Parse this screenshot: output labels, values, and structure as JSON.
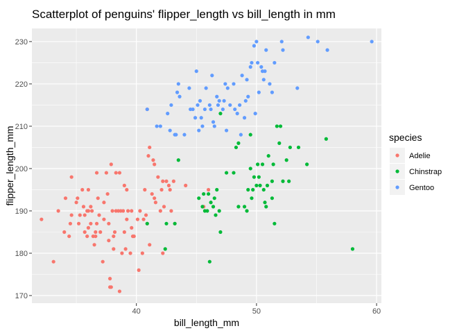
{
  "chart_data": {
    "type": "scatter",
    "title": "Scatterplot of penguins' flipper_length vs bill_length in mm",
    "xlabel": "bill_length_mm",
    "ylabel": "flipper_length_mm",
    "xlim": [
      31.3,
      60.4
    ],
    "ylim": [
      168.2,
      233.1
    ],
    "x_ticks": [
      40,
      50,
      60
    ],
    "y_ticks": [
      170,
      180,
      190,
      200,
      210,
      220,
      230
    ],
    "grid": true,
    "legend": {
      "title": "species",
      "position": "right"
    },
    "series": [
      {
        "name": "Adelie",
        "color": "#F8766D",
        "points": [
          [
            32.1,
            188
          ],
          [
            33.1,
            178
          ],
          [
            33.5,
            190
          ],
          [
            34.0,
            185
          ],
          [
            34.1,
            193
          ],
          [
            34.4,
            184
          ],
          [
            34.5,
            187
          ],
          [
            34.6,
            198
          ],
          [
            34.6,
            189
          ],
          [
            35.0,
            192
          ],
          [
            35.1,
            193
          ],
          [
            35.2,
            187
          ],
          [
            35.3,
            189
          ],
          [
            35.5,
            195
          ],
          [
            35.6,
            191
          ],
          [
            35.7,
            185
          ],
          [
            35.7,
            189
          ],
          [
            35.9,
            190
          ],
          [
            35.9,
            184
          ],
          [
            36.0,
            186
          ],
          [
            36.0,
            195
          ],
          [
            36.2,
            187
          ],
          [
            36.2,
            191
          ],
          [
            36.3,
            190
          ],
          [
            36.4,
            184
          ],
          [
            36.5,
            182
          ],
          [
            36.6,
            185
          ],
          [
            36.6,
            184
          ],
          [
            36.7,
            187
          ],
          [
            36.8,
            193
          ],
          [
            36.9,
            189
          ],
          [
            37.0,
            185
          ],
          [
            37.2,
            178
          ],
          [
            37.3,
            192
          ],
          [
            37.3,
            188
          ],
          [
            37.5,
            199
          ],
          [
            37.6,
            194
          ],
          [
            37.7,
            187
          ],
          [
            37.8,
            174
          ],
          [
            37.8,
            172
          ],
          [
            37.9,
            172
          ],
          [
            38.0,
            190
          ],
          [
            38.1,
            181
          ],
          [
            38.2,
            185
          ],
          [
            38.3,
            190
          ],
          [
            38.5,
            190
          ],
          [
            38.6,
            171
          ],
          [
            38.6,
            199
          ],
          [
            38.7,
            190
          ],
          [
            38.8,
            180
          ],
          [
            38.9,
            190
          ],
          [
            39.0,
            185
          ],
          [
            39.1,
            181
          ],
          [
            39.2,
            195
          ],
          [
            39.3,
            190
          ],
          [
            39.5,
            180
          ],
          [
            39.6,
            186
          ],
          [
            39.6,
            190
          ],
          [
            39.7,
            184
          ],
          [
            39.8,
            184
          ],
          [
            40.1,
            188
          ],
          [
            40.2,
            176
          ],
          [
            40.3,
            190
          ],
          [
            40.5,
            180
          ],
          [
            40.6,
            188
          ],
          [
            40.7,
            195
          ],
          [
            40.8,
            189
          ],
          [
            40.9,
            187
          ],
          [
            41.0,
            203
          ],
          [
            41.1,
            182
          ],
          [
            41.3,
            194
          ],
          [
            41.4,
            202
          ],
          [
            41.5,
            193
          ],
          [
            41.6,
            192
          ],
          [
            41.8,
            198
          ],
          [
            42.0,
            190
          ],
          [
            42.1,
            195
          ],
          [
            42.2,
            180
          ],
          [
            42.3,
            191
          ],
          [
            42.5,
            197
          ],
          [
            42.7,
            196
          ],
          [
            42.8,
            195
          ],
          [
            42.9,
            190
          ],
          [
            43.1,
            197
          ],
          [
            43.2,
            187
          ],
          [
            44.1,
            196
          ],
          [
            45.6,
            191
          ],
          [
            46.0,
            195
          ],
          [
            39.0,
            196
          ],
          [
            37.9,
            201
          ],
          [
            36.7,
            199
          ],
          [
            38.3,
            199
          ],
          [
            40.9,
            214
          ],
          [
            41.1,
            205
          ],
          [
            41.5,
            201
          ],
          [
            42.2,
            197
          ],
          [
            39.2,
            188
          ],
          [
            38.1,
            184
          ],
          [
            37.7,
            183
          ],
          [
            36.0,
            190
          ]
        ]
      },
      {
        "name": "Chinstrap",
        "color": "#00BA38",
        "points": [
          [
            40.9,
            187
          ],
          [
            42.4,
            181
          ],
          [
            42.5,
            187
          ],
          [
            43.2,
            187
          ],
          [
            43.5,
            202
          ],
          [
            45.2,
            193
          ],
          [
            45.5,
            191
          ],
          [
            45.6,
            194
          ],
          [
            45.7,
            190
          ],
          [
            45.9,
            190
          ],
          [
            46.0,
            194
          ],
          [
            46.1,
            178
          ],
          [
            46.2,
            192
          ],
          [
            46.4,
            191
          ],
          [
            46.5,
            193
          ],
          [
            46.6,
            189
          ],
          [
            46.7,
            195
          ],
          [
            46.9,
            190
          ],
          [
            47.0,
            185
          ],
          [
            47.5,
            199
          ],
          [
            48.1,
            199
          ],
          [
            48.5,
            191
          ],
          [
            49.0,
            191
          ],
          [
            49.2,
            190
          ],
          [
            49.3,
            195
          ],
          [
            49.5,
            200
          ],
          [
            49.6,
            193
          ],
          [
            49.7,
            195
          ],
          [
            49.8,
            198
          ],
          [
            50.0,
            196
          ],
          [
            50.1,
            201
          ],
          [
            50.2,
            198
          ],
          [
            50.3,
            196
          ],
          [
            50.5,
            201
          ],
          [
            50.6,
            195
          ],
          [
            50.7,
            192
          ],
          [
            50.8,
            191
          ],
          [
            51.0,
            203
          ],
          [
            51.3,
            197
          ],
          [
            51.4,
            201
          ],
          [
            51.5,
            187
          ],
          [
            51.7,
            210
          ],
          [
            51.9,
            206
          ],
          [
            52.0,
            210
          ],
          [
            52.2,
            197
          ],
          [
            52.5,
            202
          ],
          [
            52.7,
            197
          ],
          [
            52.8,
            205
          ],
          [
            53.5,
            205
          ],
          [
            54.2,
            201
          ],
          [
            55.8,
            207
          ],
          [
            58.0,
            181
          ],
          [
            47.0,
            213
          ],
          [
            48.5,
            206
          ],
          [
            48.3,
            205
          ],
          [
            49.5,
            208
          ],
          [
            50.9,
            196
          ],
          [
            51.3,
            193
          ]
        ]
      },
      {
        "name": "Gentoo",
        "color": "#619CFF",
        "points": [
          [
            40.9,
            214
          ],
          [
            41.7,
            210
          ],
          [
            42.0,
            210
          ],
          [
            42.6,
            213
          ],
          [
            42.8,
            209
          ],
          [
            42.9,
            215
          ],
          [
            43.2,
            208
          ],
          [
            43.3,
            208
          ],
          [
            43.4,
            218
          ],
          [
            43.5,
            220
          ],
          [
            43.6,
            217
          ],
          [
            44.0,
            208
          ],
          [
            44.4,
            219
          ],
          [
            44.5,
            214
          ],
          [
            44.9,
            212
          ],
          [
            45.1,
            215
          ],
          [
            45.2,
            209
          ],
          [
            45.3,
            216
          ],
          [
            45.4,
            212
          ],
          [
            45.5,
            210
          ],
          [
            45.7,
            214
          ],
          [
            45.8,
            219
          ],
          [
            46.1,
            215
          ],
          [
            46.2,
            214
          ],
          [
            46.4,
            211
          ],
          [
            46.5,
            210
          ],
          [
            46.8,
            215
          ],
          [
            46.9,
            216
          ],
          [
            47.2,
            214
          ],
          [
            47.3,
            216
          ],
          [
            47.5,
            209
          ],
          [
            47.8,
            215
          ],
          [
            48.1,
            220
          ],
          [
            48.4,
            213
          ],
          [
            48.7,
            208
          ],
          [
            48.8,
            222
          ],
          [
            49.0,
            212
          ],
          [
            49.1,
            216
          ],
          [
            49.2,
            221
          ],
          [
            49.5,
            224
          ],
          [
            49.6,
            225
          ],
          [
            49.8,
            229
          ],
          [
            50.0,
            230
          ],
          [
            50.1,
            225
          ],
          [
            50.2,
            218
          ],
          [
            50.4,
            224
          ],
          [
            50.5,
            223
          ],
          [
            50.7,
            223
          ],
          [
            50.8,
            228
          ],
          [
            51.1,
            220
          ],
          [
            51.3,
            218
          ],
          [
            51.5,
            225
          ],
          [
            52.1,
            230
          ],
          [
            52.2,
            228
          ],
          [
            53.4,
            219
          ],
          [
            54.3,
            231
          ],
          [
            55.1,
            230
          ],
          [
            55.9,
            228
          ],
          [
            59.6,
            230
          ],
          [
            45.0,
            223
          ],
          [
            46.3,
            222
          ],
          [
            47.4,
            220
          ],
          [
            48.2,
            214
          ],
          [
            48.6,
            215
          ],
          [
            49.3,
            217
          ],
          [
            49.9,
            213
          ],
          [
            50.6,
            221
          ],
          [
            47.6,
            219
          ],
          [
            46.7,
            217
          ],
          [
            44.7,
            214
          ]
        ]
      }
    ]
  }
}
